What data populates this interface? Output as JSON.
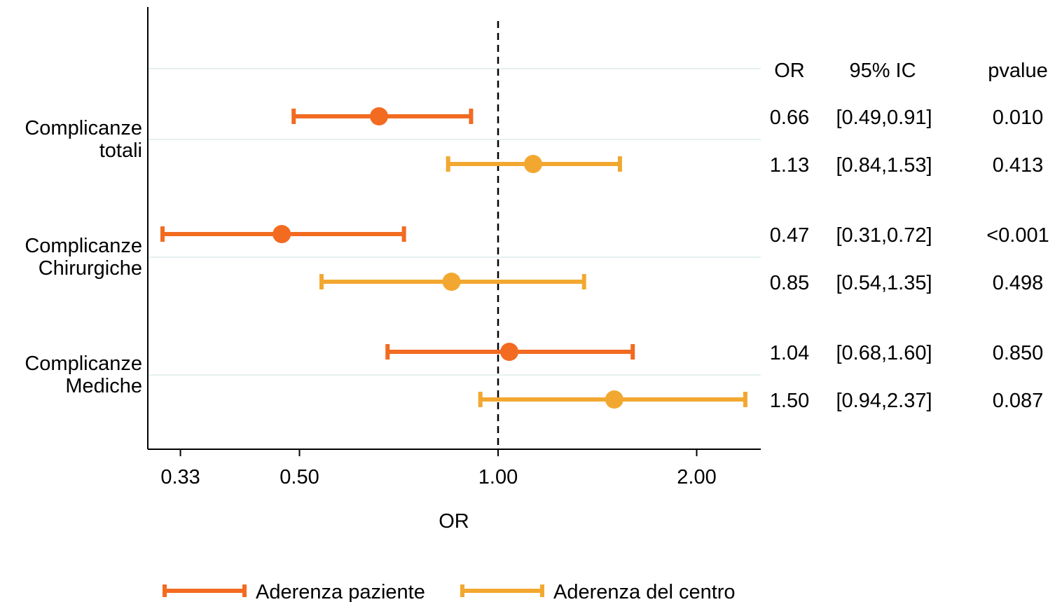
{
  "chart_data": {
    "type": "forest",
    "xlabel": "OR",
    "x_scale": "log",
    "xlim": [
      0.3,
      2.55
    ],
    "reference_line": 1.0,
    "x_ticks": [
      {
        "value": 0.33,
        "label": "0.33"
      },
      {
        "value": 0.5,
        "label": "0.50"
      },
      {
        "value": 1.0,
        "label": "1.00"
      },
      {
        "value": 2.0,
        "label": "2.00"
      }
    ],
    "grid": "horizontal",
    "legend_position": "bottom",
    "series": [
      {
        "name": "Aderenza paziente",
        "color": "#F26B21"
      },
      {
        "name": "Aderenza del centro",
        "color": "#F2A830"
      }
    ],
    "table_headers": {
      "or": "OR",
      "ci": "95% IC",
      "p": "pvalue"
    },
    "groups": [
      {
        "label": [
          "Complicanze",
          "totali"
        ],
        "rows": [
          {
            "series": 0,
            "or": 0.66,
            "lo": 0.49,
            "hi": 0.91,
            "or_text": "0.66",
            "ci_text": "[0.49,0.91]",
            "p_text": "0.010"
          },
          {
            "series": 1,
            "or": 1.13,
            "lo": 0.84,
            "hi": 1.53,
            "or_text": "1.13",
            "ci_text": "[0.84,1.53]",
            "p_text": "0.413"
          }
        ]
      },
      {
        "label": [
          "Complicanze",
          "Chirurgiche"
        ],
        "rows": [
          {
            "series": 0,
            "or": 0.47,
            "lo": 0.31,
            "hi": 0.72,
            "or_text": "0.47",
            "ci_text": "[0.31,0.72]",
            "p_text": "<0.001"
          },
          {
            "series": 1,
            "or": 0.85,
            "lo": 0.54,
            "hi": 1.35,
            "or_text": "0.85",
            "ci_text": "[0.54,1.35]",
            "p_text": "0.498"
          }
        ]
      },
      {
        "label": [
          "Complicanze",
          "Mediche"
        ],
        "rows": [
          {
            "series": 0,
            "or": 1.04,
            "lo": 0.68,
            "hi": 1.6,
            "or_text": "1.04",
            "ci_text": "[0.68,1.60]",
            "p_text": "0.850"
          },
          {
            "series": 1,
            "or": 1.5,
            "lo": 0.94,
            "hi": 2.37,
            "or_text": "1.50",
            "ci_text": "[0.94,2.37]",
            "p_text": "0.087"
          }
        ]
      }
    ]
  }
}
